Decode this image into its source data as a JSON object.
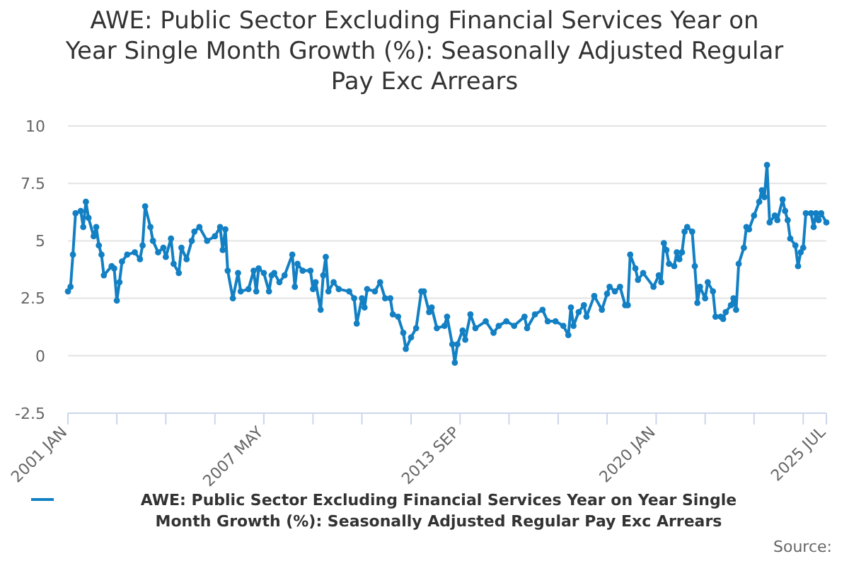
{
  "chart_data": {
    "type": "line",
    "title": "AWE: Public Sector Excluding Financial Services Year on Year Single Month Growth (%): Seasonally Adjusted Regular Pay Exc Arrears",
    "annotations": [
      "Source:"
    ],
    "x": [
      "2001-01",
      "2001-02",
      "2001-03",
      "2001-04",
      "2001-06",
      "2001-07",
      "2001-08",
      "2001-09",
      "2001-11",
      "2001-12",
      "2002-01",
      "2002-02",
      "2002-03",
      "2002-06",
      "2002-07",
      "2002-08",
      "2002-09",
      "2002-10",
      "2002-12",
      "2003-03",
      "2003-05",
      "2003-06",
      "2003-07",
      "2003-09",
      "2003-10",
      "2003-12",
      "2004-02",
      "2004-03",
      "2004-05",
      "2004-06",
      "2004-08",
      "2004-09",
      "2004-11",
      "2005-01",
      "2005-02",
      "2005-04",
      "2005-07",
      "2005-10",
      "2005-12",
      "2006-01",
      "2006-02",
      "2006-03",
      "2006-05",
      "2006-07",
      "2006-08",
      "2006-11",
      "2007-01",
      "2007-02",
      "2007-03",
      "2007-05",
      "2007-07",
      "2007-08",
      "2007-09",
      "2007-11",
      "2008-01",
      "2008-04",
      "2008-05",
      "2008-06",
      "2008-08",
      "2008-11",
      "2008-12",
      "2009-01",
      "2009-03",
      "2009-04",
      "2009-05",
      "2009-06",
      "2009-08",
      "2009-10",
      "2010-02",
      "2010-04",
      "2010-05",
      "2010-07",
      "2010-08",
      "2010-09",
      "2010-12",
      "2011-02",
      "2011-04",
      "2011-06",
      "2011-07",
      "2011-09",
      "2011-11",
      "2011-12",
      "2012-02",
      "2012-04",
      "2012-06",
      "2012-07",
      "2012-09",
      "2012-10",
      "2012-12",
      "2013-03",
      "2013-04",
      "2013-06",
      "2013-07",
      "2013-08",
      "2013-10",
      "2013-11",
      "2014-01",
      "2014-03",
      "2014-07",
      "2014-10",
      "2014-12",
      "2015-03",
      "2015-06",
      "2015-10",
      "2015-11",
      "2016-02",
      "2016-05",
      "2016-07",
      "2016-10",
      "2017-01",
      "2017-03",
      "2017-04",
      "2017-05",
      "2017-07",
      "2017-09",
      "2017-10",
      "2018-01",
      "2018-04",
      "2018-06",
      "2018-07",
      "2018-09",
      "2018-11",
      "2019-01",
      "2019-02",
      "2019-03",
      "2019-05",
      "2019-06",
      "2019-08",
      "2019-12",
      "2020-02",
      "2020-03",
      "2020-04",
      "2020-05",
      "2020-06",
      "2020-08",
      "2020-09",
      "2020-10",
      "2020-11",
      "2020-12",
      "2021-01",
      "2021-03",
      "2021-04",
      "2021-05",
      "2021-06",
      "2021-08",
      "2021-09",
      "2021-11",
      "2021-12",
      "2022-02",
      "2022-03",
      "2022-04",
      "2022-06",
      "2022-07",
      "2022-08",
      "2022-09",
      "2022-11",
      "2022-12",
      "2023-01",
      "2023-03",
      "2023-05",
      "2023-06",
      "2023-07",
      "2023-08",
      "2023-09",
      "2023-11",
      "2023-12",
      "2024-02",
      "2024-03",
      "2024-04",
      "2024-05",
      "2024-07",
      "2024-08",
      "2024-09",
      "2024-10",
      "2024-11",
      "2025-01",
      "2025-02",
      "2025-03",
      "2025-04",
      "2025-05",
      "2025-07"
    ],
    "series": [
      {
        "name": "AWE: Public Sector Excluding Financial Services Year on Year Single Month Growth (%): Seasonally Adjusted Regular Pay Exc Arrears",
        "color": "#1380c4",
        "values": [
          2.8,
          3.0,
          4.4,
          6.2,
          6.3,
          5.6,
          6.7,
          6.0,
          5.2,
          5.6,
          4.8,
          4.4,
          3.5,
          3.9,
          3.8,
          2.4,
          3.2,
          4.1,
          4.4,
          4.5,
          4.2,
          4.8,
          6.5,
          5.6,
          5.0,
          4.5,
          4.7,
          4.3,
          5.1,
          4.0,
          3.6,
          4.7,
          4.2,
          5.0,
          5.4,
          5.6,
          5.0,
          5.2,
          5.6,
          4.6,
          5.5,
          3.7,
          2.5,
          3.6,
          2.8,
          2.9,
          3.7,
          2.8,
          3.8,
          3.6,
          2.8,
          3.5,
          3.6,
          3.2,
          3.5,
          4.4,
          3.0,
          4.0,
          3.7,
          3.7,
          2.9,
          3.2,
          2.0,
          3.5,
          4.3,
          2.8,
          3.2,
          2.9,
          2.8,
          2.5,
          1.4,
          2.5,
          2.1,
          2.9,
          2.8,
          3.2,
          2.5,
          2.5,
          1.8,
          1.7,
          1.0,
          0.3,
          0.8,
          1.2,
          2.8,
          2.8,
          1.9,
          2.1,
          1.2,
          1.3,
          1.7,
          0.5,
          -0.3,
          0.5,
          1.1,
          0.7,
          1.8,
          1.2,
          1.5,
          1.0,
          1.3,
          1.5,
          1.3,
          1.7,
          1.2,
          1.8,
          2.0,
          1.5,
          1.5,
          1.3,
          0.9,
          2.1,
          1.3,
          1.9,
          2.2,
          1.7,
          2.6,
          2.0,
          2.7,
          3.0,
          2.8,
          3.0,
          2.2,
          2.2,
          4.4,
          3.8,
          3.3,
          3.6,
          3.0,
          3.5,
          3.2,
          4.9,
          4.6,
          4.0,
          3.9,
          4.5,
          4.2,
          4.5,
          5.4,
          5.6,
          5.4,
          3.9,
          2.3,
          3.0,
          2.5,
          3.2,
          2.8,
          1.7,
          1.7,
          1.6,
          1.9,
          2.2,
          2.5,
          2.0,
          4.0,
          4.7,
          5.6,
          5.5,
          6.1,
          6.7,
          7.2,
          6.9,
          8.3,
          5.8,
          6.1,
          5.9,
          6.8,
          6.3,
          5.9,
          5.1,
          4.8,
          3.9,
          4.5,
          4.7,
          6.2,
          6.2,
          5.6,
          6.2,
          5.9,
          6.2,
          5.8
        ]
      }
    ],
    "xlim": [
      "2001-01",
      "2025-07"
    ],
    "xticks": [
      {
        "value": "2001-01",
        "label": "2001 JAN"
      },
      {
        "value": "2002-08",
        "label": null
      },
      {
        "value": "2004-03",
        "label": null
      },
      {
        "value": "2005-10",
        "label": null
      },
      {
        "value": "2007-05",
        "label": "2007 MAY"
      },
      {
        "value": "2008-12",
        "label": null
      },
      {
        "value": "2010-07",
        "label": null
      },
      {
        "value": "2012-02",
        "label": null
      },
      {
        "value": "2013-09",
        "label": "2013 SEP"
      },
      {
        "value": "2015-04",
        "label": null
      },
      {
        "value": "2016-11",
        "label": null
      },
      {
        "value": "2018-06",
        "label": null
      },
      {
        "value": "2020-01",
        "label": "2020 JAN"
      },
      {
        "value": "2021-08",
        "label": null
      },
      {
        "value": "2023-03",
        "label": null
      },
      {
        "value": "2024-10",
        "label": null
      },
      {
        "value": "2025-07",
        "label": "2025 JUL"
      }
    ],
    "ylim": [
      -2.5,
      10
    ],
    "yticks": [
      -2.5,
      0,
      2.5,
      5,
      7.5,
      10
    ],
    "grid": "y",
    "legend": "bottom",
    "marker": "circle",
    "line_style": "solid"
  }
}
